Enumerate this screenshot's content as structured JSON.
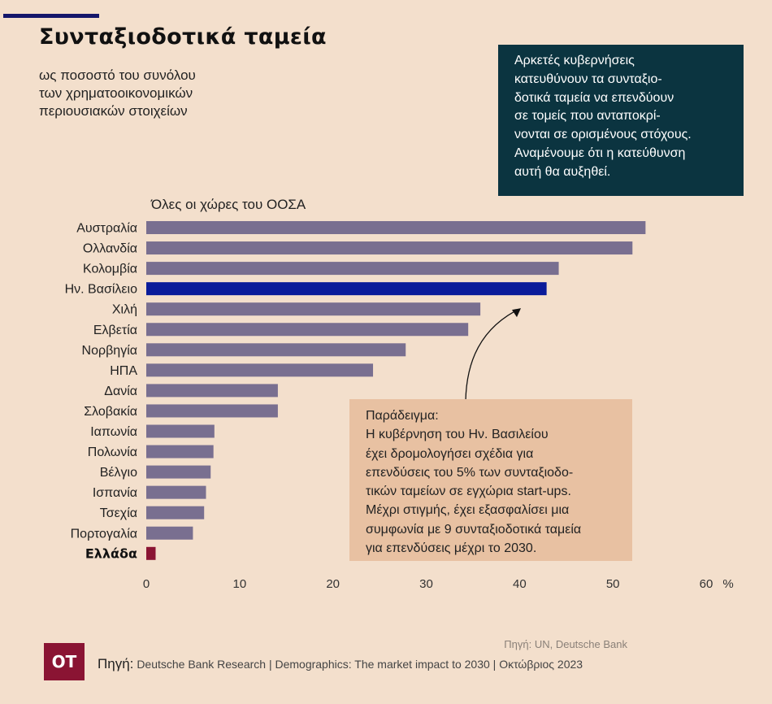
{
  "header": {
    "title": "Συνταξιοδοτικά ταμεία",
    "subtitle_lines": [
      "ως ποσοστό του συνόλου",
      "των χρηματοοικονομικών",
      "περιουσιακών στοιχείων"
    ]
  },
  "info_box": {
    "lines": [
      "Αρκετές κυβερνήσεις",
      "κατευθύνουν τα συνταξιο-",
      "δοτικά ταμεία να επενδύουν",
      "σε τομείς που ανταποκρί-",
      "νονται σε ορισμένους στόχους.",
      "Αναμένουμε ότι η κατεύθυνση",
      "αυτή θα αυξηθεί."
    ]
  },
  "example_box": {
    "lines": [
      "Παράδειγμα:",
      "Η κυβέρνηση του Ην. Βασιλείου",
      "έχει δρομολογήσει σχέδια για",
      "επενδύσεις του 5% των συνταξιοδο-",
      "τικών ταμείων σε εγχώρια start-ups.",
      "Μέχρι στιγμής, έχει εξασφαλίσει μια",
      "συμφωνία με 9 συνταξιοδοτικά ταμεία",
      "για επενδύσεις μέχρι το 2030."
    ]
  },
  "colors": {
    "background": "#f3dfcc",
    "bar_default": "#796f90",
    "bar_uk": "#0a1b9a",
    "bar_greece": "#8a1433",
    "info_box": "#0b3440",
    "example_box": "#e8c1a2",
    "accent_line": "#14166a"
  },
  "chart_data": {
    "type": "bar",
    "orientation": "horizontal",
    "title": "Συνταξιοδοτικά ταμεία",
    "subtitle": "ως ποσοστό του συνόλου των χρηματοοικονομικών περιουσιακών στοιχείων",
    "group_label": "Όλες οι χώρες του ΟΟΣΑ",
    "categories": [
      "Αυστραλία",
      "Ολλανδία",
      "Κολομβία",
      "Ην. Βασίλειο",
      "Χιλή",
      "Ελβετία",
      "Νορβηγία",
      "ΗΠΑ",
      "Δανία",
      "Σλοβακία",
      "Ιαπωνία",
      "Πολωνία",
      "Βέλγιο",
      "Ισπανία",
      "Τσεχία",
      "Πορτογαλία",
      "Ελλάδα"
    ],
    "values": [
      53.5,
      52.1,
      44.2,
      42.9,
      35.8,
      34.5,
      27.8,
      24.3,
      14.1,
      14.1,
      7.3,
      7.2,
      6.9,
      6.4,
      6.2,
      5.0,
      1.0
    ],
    "highlight": {
      "Ην. Βασίλειο": "uk",
      "Ελλάδα": "greece"
    },
    "bold_categories": [
      "Ελλάδα"
    ],
    "xlabel": "",
    "x_unit": "%",
    "xlim": [
      0,
      60
    ],
    "x_ticks": [
      0,
      10,
      20,
      30,
      40,
      50,
      60
    ],
    "x_tick_labels": [
      "0",
      "10",
      "20",
      "30",
      "40",
      "50",
      "60"
    ],
    "grid": false,
    "annotation": "Βέλος από το πλαίσιο παραδείγματος προς τη μπάρα του Ην. Βασιλείου"
  },
  "footer": {
    "logo_text": "ΟΤ",
    "source_top": "Πηγή: UN, Deutsche Bank",
    "source_label": "Πηγή:",
    "source_text": "Deutsche Bank Research  |  Demographics: The market impact to 2030  |  Οκτώβριος 2023"
  }
}
